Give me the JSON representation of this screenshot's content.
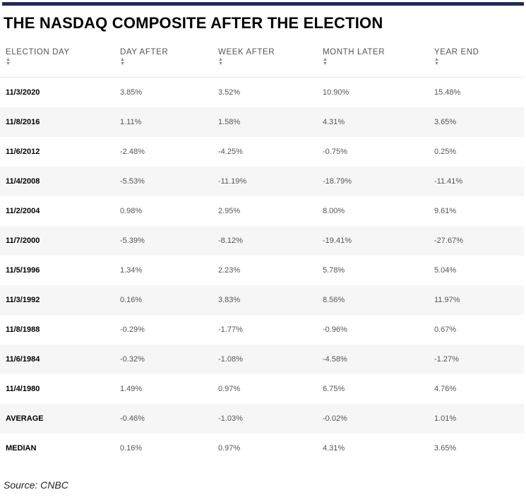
{
  "title": "THE NASDAQ COMPOSITE AFTER THE ELECTION",
  "columns": [
    {
      "label": "ELECTION DAY"
    },
    {
      "label": "DAY AFTER"
    },
    {
      "label": "WEEK AFTER"
    },
    {
      "label": "MONTH LATER"
    },
    {
      "label": "YEAR END"
    }
  ],
  "rows": [
    [
      "11/3/2020",
      "3.85%",
      "3.52%",
      "10.90%",
      "15.48%"
    ],
    [
      "11/8/2016",
      "1.11%",
      "1.58%",
      "4.31%",
      "3.65%"
    ],
    [
      "11/6/2012",
      "-2.48%",
      "-4.25%",
      "-0.75%",
      "0.25%"
    ],
    [
      "11/4/2008",
      "-5.53%",
      "-11.19%",
      "-18.79%",
      "-11.41%"
    ],
    [
      "11/2/2004",
      "0.98%",
      "2.95%",
      "8.00%",
      "9.61%"
    ],
    [
      "11/7/2000",
      "-5.39%",
      "-8.12%",
      "-19.41%",
      "-27.67%"
    ],
    [
      "11/5/1996",
      "1.34%",
      "2.23%",
      "5.78%",
      "5.04%"
    ],
    [
      "11/3/1992",
      "0.16%",
      "3.83%",
      "8.56%",
      "11.97%"
    ],
    [
      "11/8/1988",
      "-0.29%",
      "-1.77%",
      "-0.96%",
      "0.67%"
    ],
    [
      "11/6/1984",
      "-0.32%",
      "-1.08%",
      "-4.58%",
      "-1.27%"
    ],
    [
      "11/4/1980",
      "1.49%",
      "0.97%",
      "6.75%",
      "4.76%"
    ],
    [
      "AVERAGE",
      "-0.46%",
      "-1.03%",
      "-0.02%",
      "1.01%"
    ],
    [
      "MEDIAN",
      "0.16%",
      "0.97%",
      "4.31%",
      "3.65%"
    ]
  ],
  "source": "Source: CNBC",
  "colors": {
    "top_rule": "#1f2a57",
    "row_stripe": "#f6f6f6",
    "header_text": "#555555",
    "value_text": "#555555",
    "date_text": "#000000"
  },
  "icons": {
    "sort": "sort-arrows-icon"
  }
}
